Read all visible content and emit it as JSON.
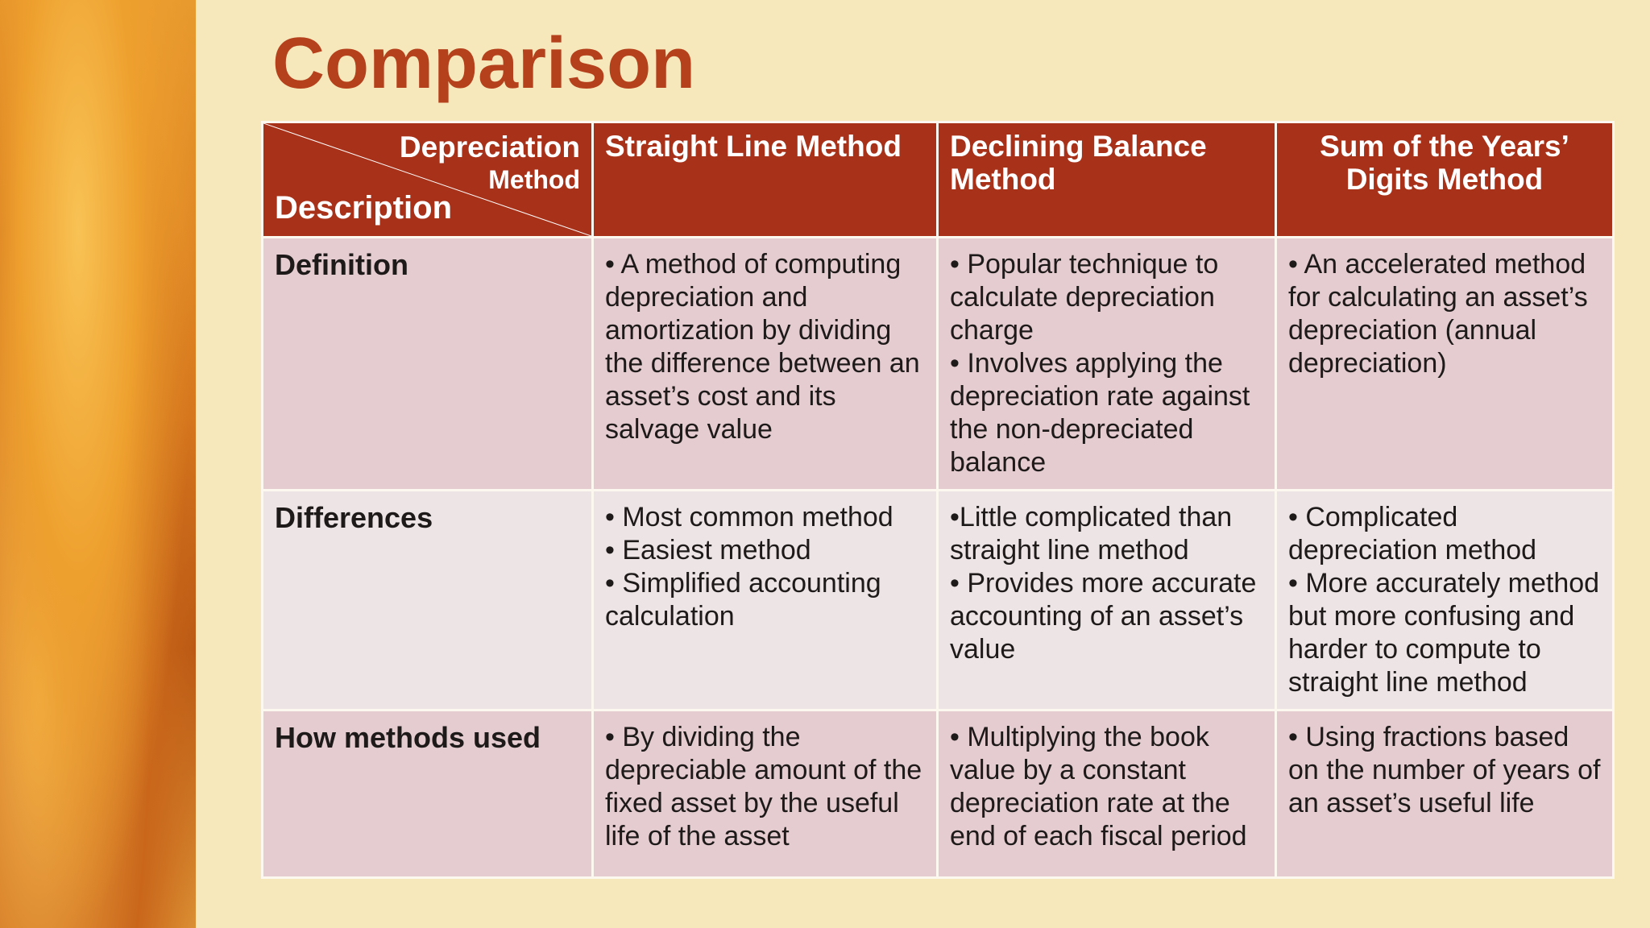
{
  "title": "Comparison",
  "table": {
    "corner": {
      "top": [
        "Depreciation",
        "Method"
      ],
      "bottom": "Description"
    },
    "columns": [
      "Straight Line Method",
      "Declining Balance Method",
      "Sum of the Years’ Digits Method"
    ],
    "rows": [
      {
        "label": "Definition",
        "cells": [
          [
            "• A method of computing depreciation and amortization by dividing the difference between an asset’s cost and its salvage value"
          ],
          [
            "• Popular technique to calculate depreciation charge",
            "• Involves applying the depreciation rate against the non-depreciated balance"
          ],
          [
            "• An accelerated method for calculating an asset’s depreciation  (annual depreciation)"
          ]
        ]
      },
      {
        "label": "Differences",
        "cells": [
          [
            "• Most common method",
            "• Easiest method",
            "• Simplified accounting calculation"
          ],
          [
            "•Little complicated than straight line method",
            "• Provides more accurate accounting of an asset’s value"
          ],
          [
            "• Complicated depreciation method",
            "• More accurately method but more confusing and harder to compute to straight line method"
          ]
        ]
      },
      {
        "label": "How methods used",
        "cells": [
          [
            "•  By dividing the depreciable amount of the fixed asset by the useful life of the asset"
          ],
          [
            "• Multiplying the book value by a constant depreciation rate at the end of each fiscal period"
          ],
          [
            "• Using fractions based on the number of years of an asset’s useful life"
          ]
        ]
      }
    ]
  }
}
